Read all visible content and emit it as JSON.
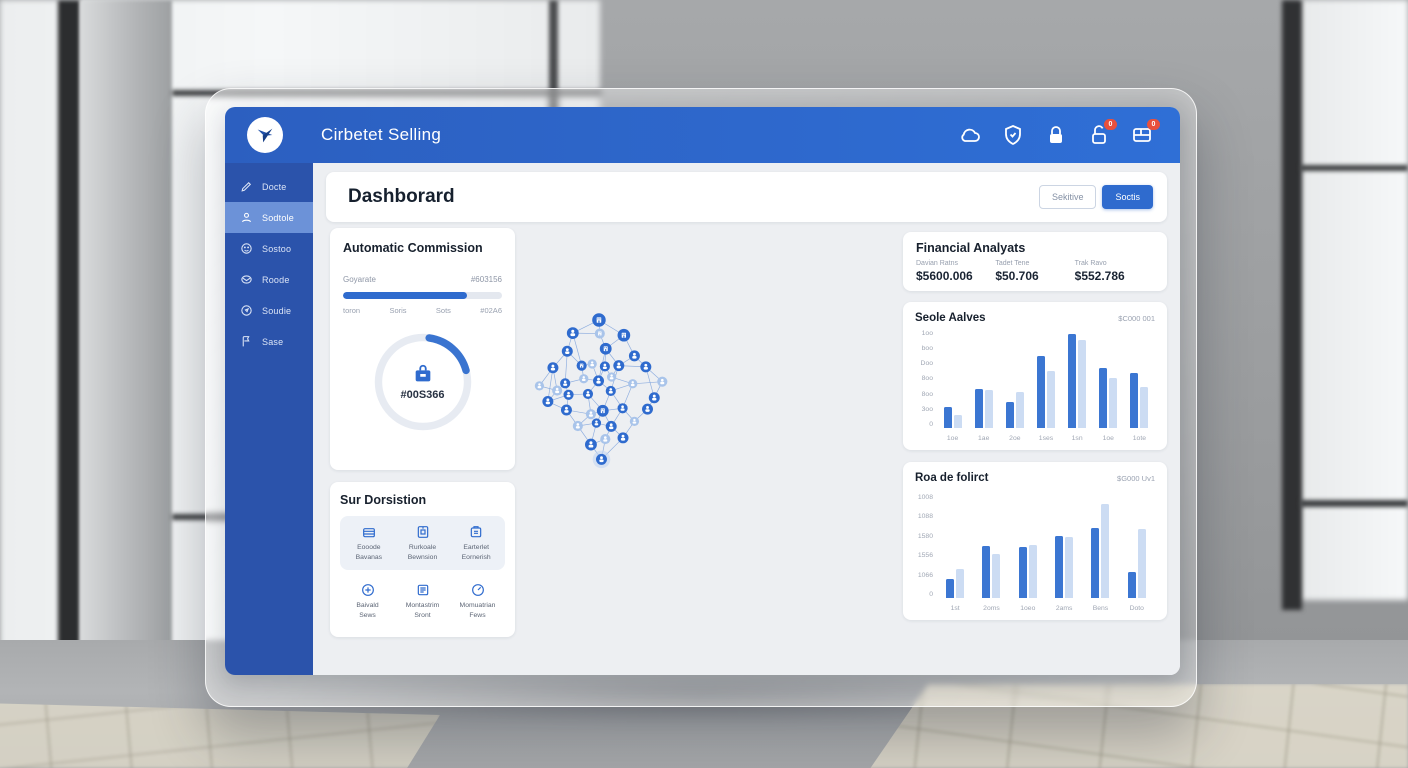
{
  "window": {
    "app_title": "Cirbetet Selling"
  },
  "header": {
    "icons": [
      {
        "icon": "cloud",
        "badge": ""
      },
      {
        "icon": "shield",
        "badge": ""
      },
      {
        "icon": "lock",
        "badge": ""
      },
      {
        "icon": "lock-open",
        "badge": "0"
      },
      {
        "icon": "panel",
        "badge": "0"
      }
    ]
  },
  "sidebar": {
    "items": [
      {
        "icon": "pencil",
        "label": "Docte",
        "active": false
      },
      {
        "icon": "user",
        "label": "Sodtole",
        "active": true
      },
      {
        "icon": "face",
        "label": "Sostoo",
        "active": false
      },
      {
        "icon": "mail",
        "label": "Roode",
        "active": false
      },
      {
        "icon": "compass",
        "label": "Soudie",
        "active": false
      },
      {
        "icon": "flag",
        "label": "Sase",
        "active": false
      }
    ]
  },
  "page": {
    "title": "Dashborard",
    "buttons": [
      {
        "label": "Sekitive",
        "variant": "outline"
      },
      {
        "label": "Soctis",
        "variant": "primary"
      }
    ]
  },
  "commission": {
    "title": "Automatic Commission",
    "row_label": "Goyarate",
    "row_value": "#603156",
    "progress_pct": 78,
    "scale": [
      "toron",
      "Soris",
      "Sots",
      "#02A6"
    ],
    "gauge_value": "#00S366"
  },
  "submenu": {
    "title": "Sur Dorsistion",
    "featured": [
      {
        "icon": "wallet",
        "line1": "Eooode",
        "line2": "Bavanas"
      },
      {
        "icon": "safe",
        "line1": "Rurkoale",
        "line2": "Bewnsion"
      },
      {
        "icon": "badge",
        "line1": "Earterlet",
        "line2": "Eornerish"
      }
    ],
    "tiles": [
      {
        "icon": "target",
        "line1": "Baivald",
        "line2": "Sews"
      },
      {
        "icon": "note",
        "line1": "Montastrim",
        "line2": "Sront"
      },
      {
        "icon": "gauge",
        "line1": "Momuatrian",
        "line2": "Fews"
      }
    ]
  },
  "financial": {
    "title": "Financial Analyats",
    "stats": [
      {
        "label": "Davian Ratns",
        "value": "$5600.006"
      },
      {
        "label": "Tadet Tene",
        "value": "$50.706"
      },
      {
        "label": "Trak Ravo",
        "value": "$552.786"
      }
    ]
  },
  "chart_data": [
    {
      "type": "bar",
      "title": "Seole Aalves",
      "right_value": "$C000 001",
      "categories": [
        "1oe",
        "1ae",
        "2oe",
        "1ses",
        "1sn",
        "1oe",
        "1ote"
      ],
      "series": [
        {
          "name": "current",
          "tone": "dark",
          "values": [
            175,
            330,
            215,
            600,
            790,
            500,
            460
          ]
        },
        {
          "name": "previous",
          "tone": "light",
          "values": [
            110,
            320,
            300,
            480,
            740,
            420,
            340
          ]
        }
      ],
      "yticks": [
        "1oo",
        "boo",
        "Doo",
        "8oo",
        "8oo",
        "3oo",
        "0"
      ],
      "ylim": [
        0,
        820
      ],
      "xlabel": "",
      "ylabel": "",
      "grid": false,
      "legend": "none"
    },
    {
      "type": "bar",
      "title": "Roa de folirct",
      "right_value": "$G000 Uv1",
      "categories": [
        "1st",
        "2oms",
        "1oeo",
        "2ams",
        "Bens",
        "Doto"
      ],
      "series": [
        {
          "name": "current",
          "tone": "dark",
          "values": [
            180,
            500,
            495,
            600,
            670,
            250
          ]
        },
        {
          "name": "previous",
          "tone": "light",
          "values": [
            280,
            420,
            505,
            590,
            905,
            665
          ]
        }
      ],
      "yticks": [
        "1008",
        "1088",
        "1580",
        "1556",
        "1066",
        "0"
      ],
      "ylim": [
        0,
        1000
      ],
      "xlabel": "",
      "ylabel": "",
      "grid": false,
      "legend": "none"
    }
  ],
  "network": {
    "nodes": [
      [
        707,
        269,
        "b",
        "d",
        16
      ],
      [
        645,
        300,
        "p",
        "d",
        14
      ],
      [
        709,
        301,
        "b",
        "l",
        12
      ],
      [
        766,
        305,
        "b",
        "d",
        15
      ],
      [
        632,
        343,
        "p",
        "d",
        13
      ],
      [
        723,
        337,
        "b",
        "d",
        14
      ],
      [
        791,
        354,
        "p",
        "d",
        13
      ],
      [
        598,
        382,
        "p",
        "d",
        13
      ],
      [
        666,
        377,
        "b",
        "d",
        12
      ],
      [
        691,
        373,
        "p",
        "l",
        11
      ],
      [
        721,
        379,
        "p",
        "d",
        12
      ],
      [
        754,
        377,
        "p",
        "d",
        13
      ],
      [
        818,
        380,
        "p",
        "d",
        13
      ],
      [
        566,
        425,
        "p",
        "l",
        11
      ],
      [
        608,
        436,
        "p",
        "l",
        12
      ],
      [
        627,
        419,
        "p",
        "d",
        12
      ],
      [
        671,
        408,
        "p",
        "l",
        11
      ],
      [
        706,
        413,
        "p",
        "d",
        13
      ],
      [
        737,
        404,
        "p",
        "l",
        11
      ],
      [
        787,
        420,
        "p",
        "l",
        11
      ],
      [
        857,
        415,
        "p",
        "l",
        12
      ],
      [
        586,
        462,
        "p",
        "d",
        13
      ],
      [
        635,
        446,
        "p",
        "d",
        12
      ],
      [
        681,
        444,
        "p",
        "d",
        12
      ],
      [
        735,
        437,
        "p",
        "d",
        12
      ],
      [
        838,
        453,
        "p",
        "d",
        13
      ],
      [
        630,
        482,
        "p",
        "d",
        13
      ],
      [
        688,
        492,
        "p",
        "l",
        12
      ],
      [
        716,
        484,
        "b",
        "d",
        14
      ],
      [
        763,
        478,
        "p",
        "d",
        12
      ],
      [
        822,
        480,
        "p",
        "d",
        13
      ],
      [
        657,
        520,
        "p",
        "l",
        12
      ],
      [
        701,
        513,
        "p",
        "d",
        11
      ],
      [
        736,
        521,
        "p",
        "d",
        13
      ],
      [
        791,
        509,
        "p",
        "l",
        11
      ],
      [
        688,
        564,
        "p",
        "d",
        14
      ],
      [
        722,
        551,
        "p",
        "l",
        12
      ],
      [
        764,
        548,
        "p",
        "d",
        13
      ],
      [
        713,
        599,
        "p",
        "d",
        13,
        1
      ]
    ],
    "edges": [
      [
        0,
        1
      ],
      [
        0,
        2
      ],
      [
        0,
        3
      ],
      [
        1,
        2
      ],
      [
        1,
        4
      ],
      [
        1,
        8
      ],
      [
        2,
        5
      ],
      [
        3,
        5
      ],
      [
        3,
        6
      ],
      [
        4,
        7
      ],
      [
        4,
        8
      ],
      [
        4,
        15
      ],
      [
        5,
        10
      ],
      [
        5,
        11
      ],
      [
        5,
        17
      ],
      [
        6,
        11
      ],
      [
        6,
        12
      ],
      [
        7,
        13
      ],
      [
        7,
        14
      ],
      [
        7,
        21
      ],
      [
        8,
        9
      ],
      [
        8,
        16
      ],
      [
        9,
        17
      ],
      [
        10,
        17
      ],
      [
        10,
        18
      ],
      [
        11,
        12
      ],
      [
        11,
        18
      ],
      [
        11,
        24
      ],
      [
        12,
        20
      ],
      [
        12,
        25
      ],
      [
        13,
        14
      ],
      [
        14,
        15
      ],
      [
        14,
        21
      ],
      [
        15,
        16
      ],
      [
        15,
        22
      ],
      [
        16,
        17
      ],
      [
        17,
        23
      ],
      [
        17,
        24
      ],
      [
        18,
        19
      ],
      [
        19,
        20
      ],
      [
        19,
        24
      ],
      [
        19,
        29
      ],
      [
        20,
        25
      ],
      [
        21,
        22
      ],
      [
        21,
        26
      ],
      [
        22,
        23
      ],
      [
        22,
        26
      ],
      [
        23,
        27
      ],
      [
        23,
        28
      ],
      [
        24,
        28
      ],
      [
        24,
        29
      ],
      [
        25,
        30
      ],
      [
        26,
        27
      ],
      [
        26,
        31
      ],
      [
        27,
        28
      ],
      [
        27,
        31
      ],
      [
        28,
        29
      ],
      [
        28,
        32
      ],
      [
        28,
        33
      ],
      [
        29,
        33
      ],
      [
        29,
        34
      ],
      [
        30,
        34
      ],
      [
        31,
        35
      ],
      [
        31,
        32
      ],
      [
        32,
        33
      ],
      [
        32,
        35
      ],
      [
        33,
        36
      ],
      [
        33,
        37
      ],
      [
        34,
        37
      ],
      [
        35,
        36
      ],
      [
        35,
        38
      ],
      [
        36,
        38
      ],
      [
        37,
        38
      ]
    ],
    "colors": {
      "node_dark": "#2f6bce",
      "node_light": "#a9c4ea",
      "edge": "#7fa3dc",
      "halo": "#c3d6f1"
    }
  },
  "colors": {
    "header_blue": "#2f6fd6",
    "sidebar_blue": "#2b53ab",
    "accent": "#2f6bce",
    "bar_dark": "#3b76d2",
    "bar_light": "#ccdcf3",
    "badge_red": "#e8503c"
  }
}
